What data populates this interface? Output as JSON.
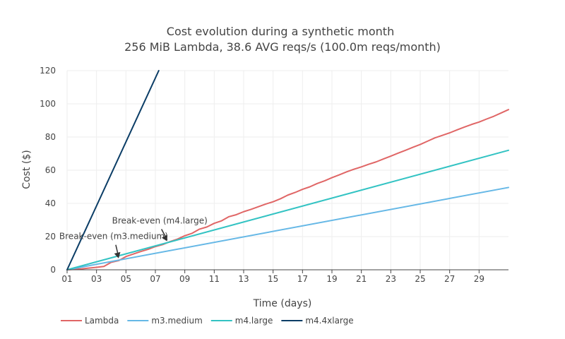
{
  "chart_data": {
    "type": "line",
    "title": "Cost evolution during a synthetic month",
    "subtitle": "256 MiB Lambda, 38.6 AVG reqs/s (100.0m reqs/month)",
    "xlabel": "Time (days)",
    "ylabel": "Cost ($)",
    "xlim": [
      1,
      31
    ],
    "ylim": [
      0,
      120
    ],
    "x_ticks": [
      1,
      3,
      5,
      7,
      9,
      11,
      13,
      15,
      17,
      19,
      21,
      23,
      25,
      27,
      29
    ],
    "x_tick_labels": [
      "01",
      "03",
      "05",
      "07",
      "09",
      "11",
      "13",
      "15",
      "17",
      "19",
      "21",
      "23",
      "25",
      "27",
      "29"
    ],
    "y_ticks": [
      0,
      20,
      40,
      60,
      80,
      100,
      120
    ],
    "y_tick_labels": [
      "0",
      "20",
      "40",
      "60",
      "80",
      "100",
      "120"
    ],
    "grid": true,
    "legend_position": "bottom-left",
    "series": [
      {
        "name": "Lambda",
        "color": "#e06666",
        "x": [
          1,
          2,
          3,
          3.5,
          4,
          4.5,
          5,
          5.5,
          6,
          6.5,
          7,
          7.5,
          8,
          8.5,
          9,
          9.5,
          10,
          10.5,
          11,
          11.5,
          12,
          12.5,
          13,
          13.5,
          14,
          14.5,
          15,
          15.5,
          16,
          16.5,
          17,
          17.5,
          18,
          18.5,
          19,
          19.5,
          20,
          20.5,
          21,
          21.5,
          22,
          22.5,
          23,
          23.5,
          24,
          24.5,
          25,
          25.5,
          26,
          26.5,
          27,
          27.5,
          28,
          28.5,
          29,
          29.5,
          30,
          30.5,
          31
        ],
        "values": [
          0,
          0.6,
          1.5,
          2,
          4.5,
          5.5,
          8,
          9.5,
          11,
          12.3,
          14,
          15.2,
          17,
          18.5,
          20.5,
          22,
          24.5,
          25.8,
          28,
          29.5,
          32,
          33.2,
          35,
          36.4,
          38,
          39.6,
          41,
          42.8,
          45,
          46.6,
          48.5,
          50,
          52,
          53.6,
          55.5,
          57.2,
          59,
          60.6,
          62,
          63.6,
          65,
          66.8,
          68.5,
          70.3,
          72,
          73.8,
          75.5,
          77.5,
          79.5,
          81,
          82.5,
          84.3,
          86,
          87.6,
          89,
          90.8,
          92.5,
          94.5,
          96.5
        ]
      },
      {
        "name": "m3.medium",
        "color": "#66b8e6",
        "x": [
          1,
          31
        ],
        "values": [
          0,
          49.6
        ]
      },
      {
        "name": "m4.large",
        "color": "#33c3c3",
        "x": [
          1,
          31
        ],
        "values": [
          0,
          72
        ]
      },
      {
        "name": "m4.4xlarge",
        "color": "#0b3d66",
        "x": [
          1,
          7.23
        ],
        "values": [
          0,
          120
        ]
      }
    ],
    "annotations": [
      {
        "text": "Break-even (m3.medium)",
        "x": 4.5,
        "y": 6.5
      },
      {
        "text": "Break-even (m4.large)",
        "x": 7.8,
        "y": 16.8
      }
    ]
  }
}
